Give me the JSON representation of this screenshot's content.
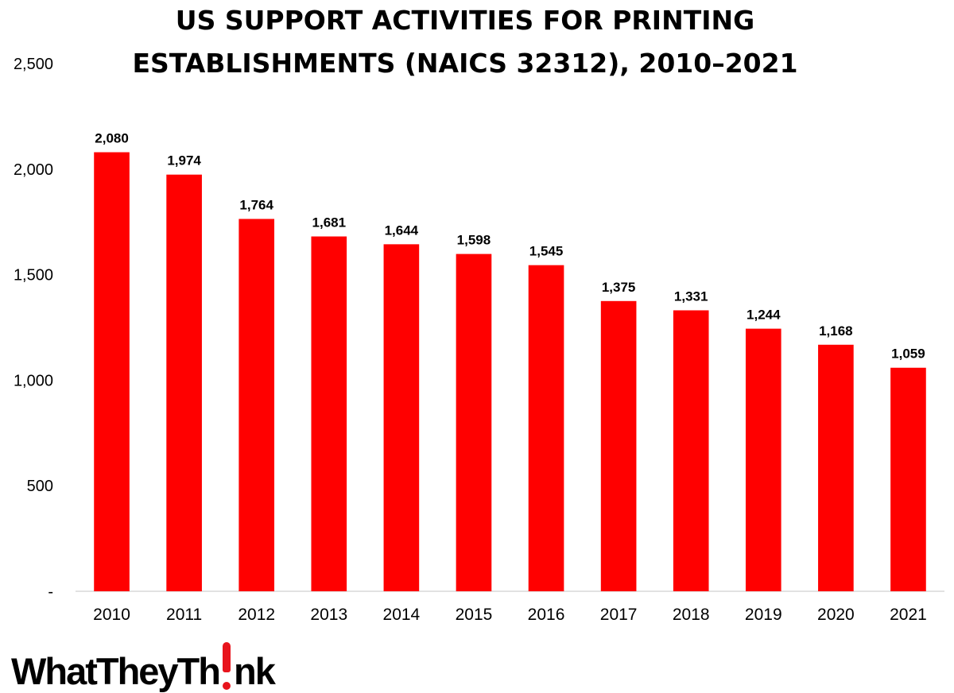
{
  "chart_data": {
    "type": "bar",
    "title": [
      "US SUPPORT ACTIVITIES FOR PRINTING",
      "ESTABLISHMENTS (NAICS 32312), 2010–2021"
    ],
    "categories": [
      "2010",
      "2011",
      "2012",
      "2013",
      "2014",
      "2015",
      "2016",
      "2017",
      "2018",
      "2019",
      "2020",
      "2021"
    ],
    "values": [
      2080,
      1974,
      1764,
      1681,
      1644,
      1598,
      1545,
      1375,
      1331,
      1244,
      1168,
      1059
    ],
    "data_labels": [
      "2,080",
      "1,974",
      "1,764",
      "1,681",
      "1,644",
      "1,598",
      "1,545",
      "1,375",
      "1,331",
      "1,244",
      "1,168",
      "1,059"
    ],
    "y_ticks": [
      0,
      500,
      1000,
      1500,
      2000,
      2500
    ],
    "y_tick_labels": [
      "-",
      "500",
      "1,000",
      "1,500",
      "2,000",
      "2,500"
    ],
    "ylim": [
      0,
      2500
    ],
    "xlabel": "",
    "ylabel": "",
    "grid": false,
    "legend": "none",
    "bar_color": "#ff0000"
  },
  "logo": {
    "text_before": "WhatTheyTh",
    "text_after": "nk",
    "accent_color": "#e8141c"
  }
}
